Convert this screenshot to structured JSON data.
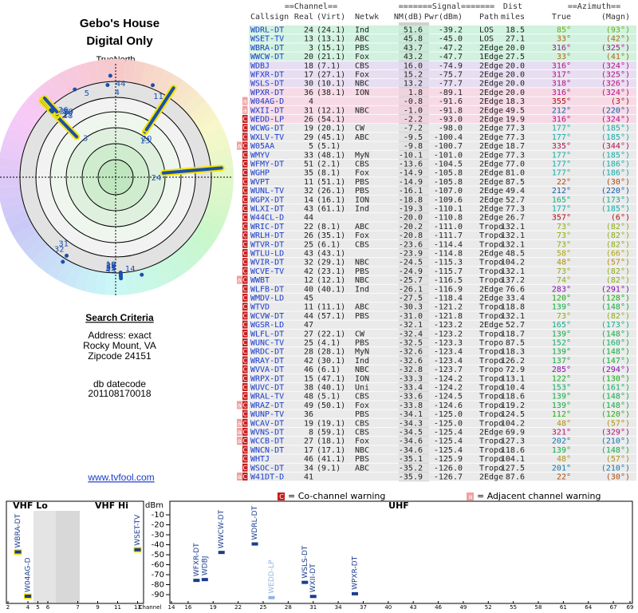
{
  "left": {
    "title": "Gebo's House",
    "subtitle": "Digital Only",
    "north_label": "TrueNorth",
    "criteria_title": "Search Criteria",
    "address": "Address: exact",
    "city": "Rocky Mount, VA",
    "zipcode": "Zipcode 24151",
    "datecode_label": "db datecode",
    "datecode": "201108170018",
    "link": "www.tvfool.com"
  },
  "table": {
    "header_top": [
      "==Channel==",
      "=======Signal=======",
      "Dist",
      "==Azimuth=="
    ],
    "header": [
      "Callsign",
      "Real",
      "(Virt)",
      "Netwk",
      "NM(dB)",
      "Pwr(dBm)",
      "Path",
      "miles",
      "True",
      "(Magn)"
    ],
    "rows": [
      [
        [],
        "WDRL-DT",
        "24",
        "(24.1)",
        "Ind",
        "51.6",
        "-39.2",
        "LOS",
        "18.5",
        "85°",
        "(93°)"
      ],
      [
        [],
        "WSET-TV",
        "13",
        "(13.1)",
        "ABC",
        "45.8",
        "-45.0",
        "LOS",
        "27.1",
        "33°",
        "(42°)"
      ],
      [
        [],
        "WBRA-DT",
        "3",
        "(15.1)",
        "PBS",
        "43.7",
        "-47.2",
        "2Edge",
        "20.0",
        "316°",
        "(325°)"
      ],
      [
        [],
        "WWCW-DT",
        "20",
        "(21.1)",
        "Fox",
        "43.2",
        "-47.7",
        "1Edge",
        "27.5",
        "33°",
        "(41°)"
      ],
      [
        [],
        "WDBJ",
        "18",
        "(7.1)",
        "CBS",
        "16.0",
        "-74.9",
        "2Edge",
        "20.0",
        "316°",
        "(324°)"
      ],
      [
        [],
        "WFXR-DT",
        "17",
        "(27.1)",
        "Fox",
        "15.2",
        "-75.7",
        "2Edge",
        "20.0",
        "317°",
        "(325°)"
      ],
      [
        [],
        "WSLS-DT",
        "30",
        "(10.1)",
        "NBC",
        "13.2",
        "-77.7",
        "2Edge",
        "20.0",
        "318°",
        "(326°)"
      ],
      [
        [],
        "WPXR-DT",
        "36",
        "(38.1)",
        "ION",
        "1.8",
        "-89.1",
        "2Edge",
        "20.0",
        "316°",
        "(324°)"
      ],
      [
        [
          "a"
        ],
        "W04AG-D",
        "4",
        null,
        null,
        "-0.8",
        "-91.6",
        "2Edge",
        "18.3",
        "355°",
        "(3°)"
      ],
      [
        [
          "a"
        ],
        "WXII-DT",
        "31",
        "(12.1)",
        "NBC",
        "-1.0",
        "-91.8",
        "2Edge",
        "49.5",
        "212°",
        "(220°)"
      ],
      [
        [
          "C"
        ],
        "WEDD-LP",
        "26",
        "(54.1)",
        null,
        "-2.2",
        "-93.0",
        "2Edge",
        "19.9",
        "316°",
        "(324°)"
      ],
      [
        [
          "C"
        ],
        "WCWG-DT",
        "19",
        "(20.1)",
        "CW",
        "-7.2",
        "-98.0",
        "2Edge",
        "77.3",
        "177°",
        "(185°)"
      ],
      [
        [
          "C"
        ],
        "WXLV-TV",
        "29",
        "(45.1)",
        "ABC",
        "-9.5",
        "-100.4",
        "2Edge",
        "77.3",
        "177°",
        "(185°)"
      ],
      [
        [
          "a",
          "C"
        ],
        "W05AA",
        "5",
        "(5.1)",
        null,
        "-9.8",
        "-100.7",
        "2Edge",
        "18.7",
        "335°",
        "(344°)"
      ],
      [
        [
          "C"
        ],
        "WMYV",
        "33",
        "(48.1)",
        "MyN",
        "-10.1",
        "-101.0",
        "2Edge",
        "77.3",
        "177°",
        "(185°)"
      ],
      [
        [
          "C"
        ],
        "WFMY-DT",
        "51",
        "(2.1)",
        "CBS",
        "-13.6",
        "-104.5",
        "2Edge",
        "77.0",
        "177°",
        "(186°)"
      ],
      [
        [
          "C"
        ],
        "WGHP",
        "35",
        "(8.1)",
        "Fox",
        "-14.9",
        "-105.8",
        "2Edge",
        "81.0",
        "177°",
        "(186°)"
      ],
      [
        [
          "C"
        ],
        "WVPT",
        "11",
        "(51.1)",
        "PBS",
        "-14.9",
        "-105.8",
        "2Edge",
        "87.5",
        "22°",
        "(30°)"
      ],
      [
        [
          "C"
        ],
        "WUNL-TV",
        "32",
        "(26.1)",
        "PBS",
        "-16.1",
        "-107.0",
        "2Edge",
        "49.4",
        "212°",
        "(220°)"
      ],
      [
        [
          "C"
        ],
        "WGPX-DT",
        "14",
        "(16.1)",
        "ION",
        "-18.8",
        "-109.6",
        "2Edge",
        "52.7",
        "165°",
        "(173°)"
      ],
      [
        [
          "C"
        ],
        "WLXI-DT",
        "43",
        "(61.1)",
        "Ind",
        "-19.3",
        "-110.1",
        "2Edge",
        "77.3",
        "177°",
        "(185°)"
      ],
      [
        [
          "C"
        ],
        "W44CL-D",
        "44",
        null,
        null,
        "-20.0",
        "-110.8",
        "2Edge",
        "26.7",
        "357°",
        "(6°)"
      ],
      [
        [
          "C"
        ],
        "WRIC-DT",
        "22",
        "(8.1)",
        "ABC",
        "-20.2",
        "-111.0",
        "Tropo",
        "132.1",
        "73°",
        "(82°)"
      ],
      [
        [
          "C"
        ],
        "WRLH-DT",
        "26",
        "(35.1)",
        "Fox",
        "-20.8",
        "-111.7",
        "Tropo",
        "132.1",
        "73°",
        "(82°)"
      ],
      [
        [
          "C"
        ],
        "WTVR-DT",
        "25",
        "(6.1)",
        "CBS",
        "-23.6",
        "-114.4",
        "Tropo",
        "132.1",
        "73°",
        "(82°)"
      ],
      [
        [
          "C"
        ],
        "WTLU-LD",
        "43",
        "(43.1)",
        null,
        "-23.9",
        "-114.8",
        "2Edge",
        "48.5",
        "58°",
        "(66°)"
      ],
      [
        [
          "C"
        ],
        "WVIR-DT",
        "32",
        "(29.1)",
        "NBC",
        "-24.5",
        "-115.3",
        "Tropo",
        "104.2",
        "48°",
        "(57°)"
      ],
      [
        [
          "C"
        ],
        "WCVE-TV",
        "42",
        "(23.1)",
        "PBS",
        "-24.9",
        "-115.7",
        "Tropo",
        "132.1",
        "73°",
        "(82°)"
      ],
      [
        [
          "a",
          "C"
        ],
        "WWBT",
        "12",
        "(12.1)",
        "NBC",
        "-25.7",
        "-116.5",
        "Tropo",
        "137.2",
        "74°",
        "(82°)"
      ],
      [
        [
          "C"
        ],
        "WLFB-DT",
        "40",
        "(40.1)",
        "Ind",
        "-26.1",
        "-116.9",
        "2Edge",
        "76.6",
        "283°",
        "(291°)"
      ],
      [
        [
          "C"
        ],
        "WMDV-LD",
        "45",
        null,
        null,
        "-27.5",
        "-118.4",
        "2Edge",
        "33.4",
        "120°",
        "(128°)"
      ],
      [
        [
          "C"
        ],
        "WTVD",
        "11",
        "(11.1)",
        "ABC",
        "-30.3",
        "-121.2",
        "Tropo",
        "118.8",
        "139°",
        "(148°)"
      ],
      [
        [
          "C"
        ],
        "WCVW-DT",
        "44",
        "(57.1)",
        "PBS",
        "-31.0",
        "-121.8",
        "Tropo",
        "132.1",
        "73°",
        "(82°)"
      ],
      [
        [
          "C"
        ],
        "WGSR-LD",
        "47",
        null,
        null,
        "-32.1",
        "-123.2",
        "2Edge",
        "52.7",
        "165°",
        "(173°)"
      ],
      [
        [
          "C"
        ],
        "WLFL-DT",
        "27",
        "(22.1)",
        "CW",
        "-32.4",
        "-123.2",
        "Tropo",
        "118.7",
        "139°",
        "(148°)"
      ],
      [
        [
          "C"
        ],
        "WUNC-TV",
        "25",
        "(4.1)",
        "PBS",
        "-32.5",
        "-123.3",
        "Tropo",
        "87.5",
        "152°",
        "(160°)"
      ],
      [
        [
          "C"
        ],
        "WRDC-DT",
        "28",
        "(28.1)",
        "MyN",
        "-32.6",
        "-123.4",
        "Tropo",
        "118.3",
        "139°",
        "(148°)"
      ],
      [
        [
          "C"
        ],
        "WRAY-DT",
        "42",
        "(30.1)",
        "Ind",
        "-32.6",
        "-123.4",
        "Tropo",
        "126.2",
        "137°",
        "(147°)"
      ],
      [
        [
          "C"
        ],
        "WVVA-DT",
        "46",
        "(6.1)",
        "NBC",
        "-32.8",
        "-123.7",
        "Tropo",
        "72.9",
        "285°",
        "(294°)"
      ],
      [
        [
          "C"
        ],
        "WRPX-DT",
        "15",
        "(47.1)",
        "ION",
        "-33.3",
        "-124.2",
        "Tropo",
        "113.1",
        "122°",
        "(130°)"
      ],
      [
        [
          "C"
        ],
        "WUVC-DT",
        "38",
        "(40.1)",
        "Uni",
        "-33.4",
        "-124.2",
        "Tropo",
        "110.4",
        "153°",
        "(161°)"
      ],
      [
        [
          "C"
        ],
        "WRAL-TV",
        "48",
        "(5.1)",
        "CBS",
        "-33.6",
        "-124.5",
        "Tropo",
        "118.6",
        "139°",
        "(148°)"
      ],
      [
        [
          "a",
          "C"
        ],
        "WRAZ-DT",
        "49",
        "(50.1)",
        "Fox",
        "-33.8",
        "-124.6",
        "Tropo",
        "119.2",
        "139°",
        "(148°)"
      ],
      [
        [
          "C"
        ],
        "WUNP-TV",
        "36",
        null,
        "PBS",
        "-34.1",
        "-125.0",
        "Tropo",
        "124.5",
        "112°",
        "(120°)"
      ],
      [
        [
          "a",
          "C"
        ],
        "WCAV-DT",
        "19",
        "(19.1)",
        "CBS",
        "-34.3",
        "-125.0",
        "Tropo",
        "104.2",
        "48°",
        "(57°)"
      ],
      [
        [
          "a",
          "C"
        ],
        "WVNS-DT",
        "8",
        "(59.1)",
        "CBS",
        "-34.5",
        "-125.4",
        "2Edge",
        "69.9",
        "321°",
        "(329°)"
      ],
      [
        [
          "a",
          "C"
        ],
        "WCCB-DT",
        "27",
        "(18.1)",
        "Fox",
        "-34.6",
        "-125.4",
        "Tropo",
        "127.3",
        "202°",
        "(210°)"
      ],
      [
        [
          "C"
        ],
        "WNCN-DT",
        "17",
        "(17.1)",
        "NBC",
        "-34.6",
        "-125.4",
        "Tropo",
        "118.6",
        "139°",
        "(148°)"
      ],
      [
        [
          "C"
        ],
        "WHTJ",
        "46",
        "(41.1)",
        "PBS",
        "-35.1",
        "-125.9",
        "Tropo",
        "104.1",
        "48°",
        "(57°)"
      ],
      [
        [
          "C"
        ],
        "WSOC-DT",
        "34",
        "(9.1)",
        "ABC",
        "-35.2",
        "-126.0",
        "Tropo",
        "127.5",
        "201°",
        "(210°)"
      ],
      [
        [
          "a",
          "C"
        ],
        "W41DT-D",
        "41",
        null,
        null,
        "-35.9",
        "-126.7",
        "2Edge",
        "87.6",
        "22°",
        "(30°)"
      ]
    ]
  },
  "spectrum": {
    "vhf_lo_label": "VHF Lo",
    "vhf_hi_label": "VHF Hi",
    "uhf_label": "UHF",
    "ylabel": "dBm",
    "xlabel": "Channel",
    "ylim": [
      -96,
      -2
    ],
    "yticks": [
      -10,
      -20,
      -30,
      -40,
      -50,
      -60,
      -70,
      -80,
      -90
    ],
    "vhf_xlim": [
      2,
      13
    ],
    "vhf_xticks": [
      2,
      4,
      5,
      6,
      7,
      9,
      11,
      13
    ],
    "uhf_xlim": [
      14,
      69
    ],
    "uhf_xticks": [
      14,
      16,
      19,
      22,
      25,
      28,
      31,
      34,
      37,
      40,
      43,
      46,
      49,
      52,
      55,
      58,
      61,
      64,
      67,
      69
    ],
    "legend": [
      {
        "symbol": "C",
        "text": "= Co-channel warning"
      },
      {
        "symbol": "a",
        "text": "= Adjacent channel warning"
      }
    ]
  }
}
